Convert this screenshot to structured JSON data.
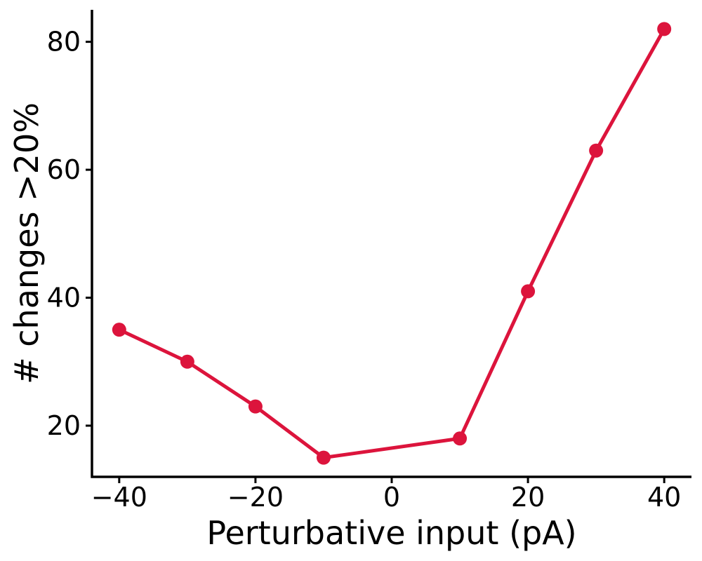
{
  "chart_data": {
    "type": "line",
    "title": "",
    "xlabel": "Perturbative input (pA)",
    "ylabel": "# changes >20%",
    "x": [
      -40,
      -30,
      -20,
      -10,
      10,
      20,
      30,
      40
    ],
    "series": [
      {
        "values": [
          35,
          30,
          23,
          15,
          18,
          41,
          63,
          82
        ],
        "color": "#dc143c"
      }
    ],
    "xlim": [
      -44,
      44
    ],
    "ylim": [
      12,
      85
    ],
    "xticks": [
      -40,
      -20,
      0,
      20,
      40
    ],
    "xtick_labels": [
      "−40",
      "−20",
      "0",
      "20",
      "40"
    ],
    "yticks": [
      20,
      40,
      60,
      80
    ],
    "ytick_labels": [
      "20",
      "40",
      "60",
      "80"
    ],
    "grid": false,
    "legend": "none"
  }
}
